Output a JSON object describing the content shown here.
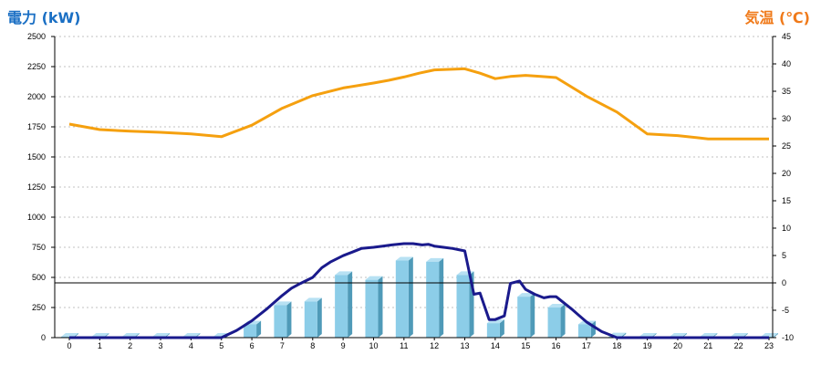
{
  "chart_data": {
    "type": "bar+line",
    "left_axis_title": "電力 (kW)",
    "right_axis_title": "気温 (℃)",
    "categories": [
      "0",
      "1",
      "2",
      "3",
      "4",
      "5",
      "6",
      "7",
      "8",
      "9",
      "10",
      "11",
      "12",
      "13",
      "14",
      "15",
      "16",
      "17",
      "18",
      "19",
      "20",
      "21",
      "22",
      "23"
    ],
    "left_ylim": [
      0,
      2500
    ],
    "left_ticks": [
      0,
      250,
      500,
      750,
      1000,
      1250,
      1500,
      1750,
      2000,
      2250,
      2500
    ],
    "right_ylim": [
      -10,
      45
    ],
    "right_ticks": [
      -10,
      -5,
      0,
      5,
      10,
      15,
      20,
      25,
      30,
      35,
      40,
      45
    ],
    "bars": [
      0,
      0,
      0,
      0,
      0,
      0,
      110,
      270,
      300,
      520,
      480,
      640,
      630,
      520,
      120,
      340,
      250,
      110,
      10,
      0,
      0,
      0,
      0,
      0
    ],
    "power_line": {
      "x": [
        5,
        5.5,
        6,
        6.5,
        7,
        7.3,
        7.6,
        8,
        8.3,
        8.6,
        9,
        9.3,
        9.6,
        10,
        10.3,
        10.6,
        11,
        11.3,
        11.6,
        11.8,
        12,
        12.3,
        12.6,
        12.8,
        13,
        13.3,
        13.5,
        13.8,
        14,
        14.3,
        14.5,
        14.8,
        15,
        15.3,
        15.6,
        15.8,
        16,
        16.5,
        17,
        17.5,
        18,
        18.5
      ],
      "y": [
        0,
        60,
        140,
        240,
        350,
        410,
        450,
        500,
        580,
        630,
        680,
        710,
        740,
        750,
        760,
        770,
        780,
        780,
        770,
        775,
        760,
        750,
        740,
        730,
        720,
        360,
        370,
        150,
        150,
        180,
        450,
        470,
        400,
        360,
        330,
        340,
        340,
        240,
        130,
        50,
        0,
        0
      ]
    },
    "temperature": {
      "x": [
        0,
        0.5,
        1,
        2,
        3,
        4,
        5,
        6,
        7,
        8,
        9,
        10,
        10.5,
        11,
        11.5,
        12,
        12.5,
        13,
        13.5,
        14,
        14.5,
        15,
        15.5,
        16,
        17,
        18,
        19,
        20,
        21,
        22,
        23
      ],
      "y": [
        29,
        28.5,
        28,
        27.7,
        27.5,
        27.2,
        26.7,
        28.8,
        31.9,
        34.2,
        35.6,
        36.5,
        37,
        37.6,
        38.3,
        38.9,
        39,
        39.1,
        38.3,
        37.3,
        37.7,
        37.9,
        37.7,
        37.5,
        34.1,
        31.2,
        27.2,
        26.9,
        26.3,
        26.3,
        26.3
      ]
    },
    "reference_line_right": 0,
    "grid": true,
    "colors": {
      "bar_front": "#8ccde8",
      "bar_top": "#b7e1f3",
      "bar_side": "#4f9ab8",
      "power_line": "#1a1a8c",
      "temperature_line": "#f5a00f",
      "left_title": "#1a6fc4",
      "right_title": "#f07a1a",
      "grid": "#c0c0c0"
    }
  }
}
